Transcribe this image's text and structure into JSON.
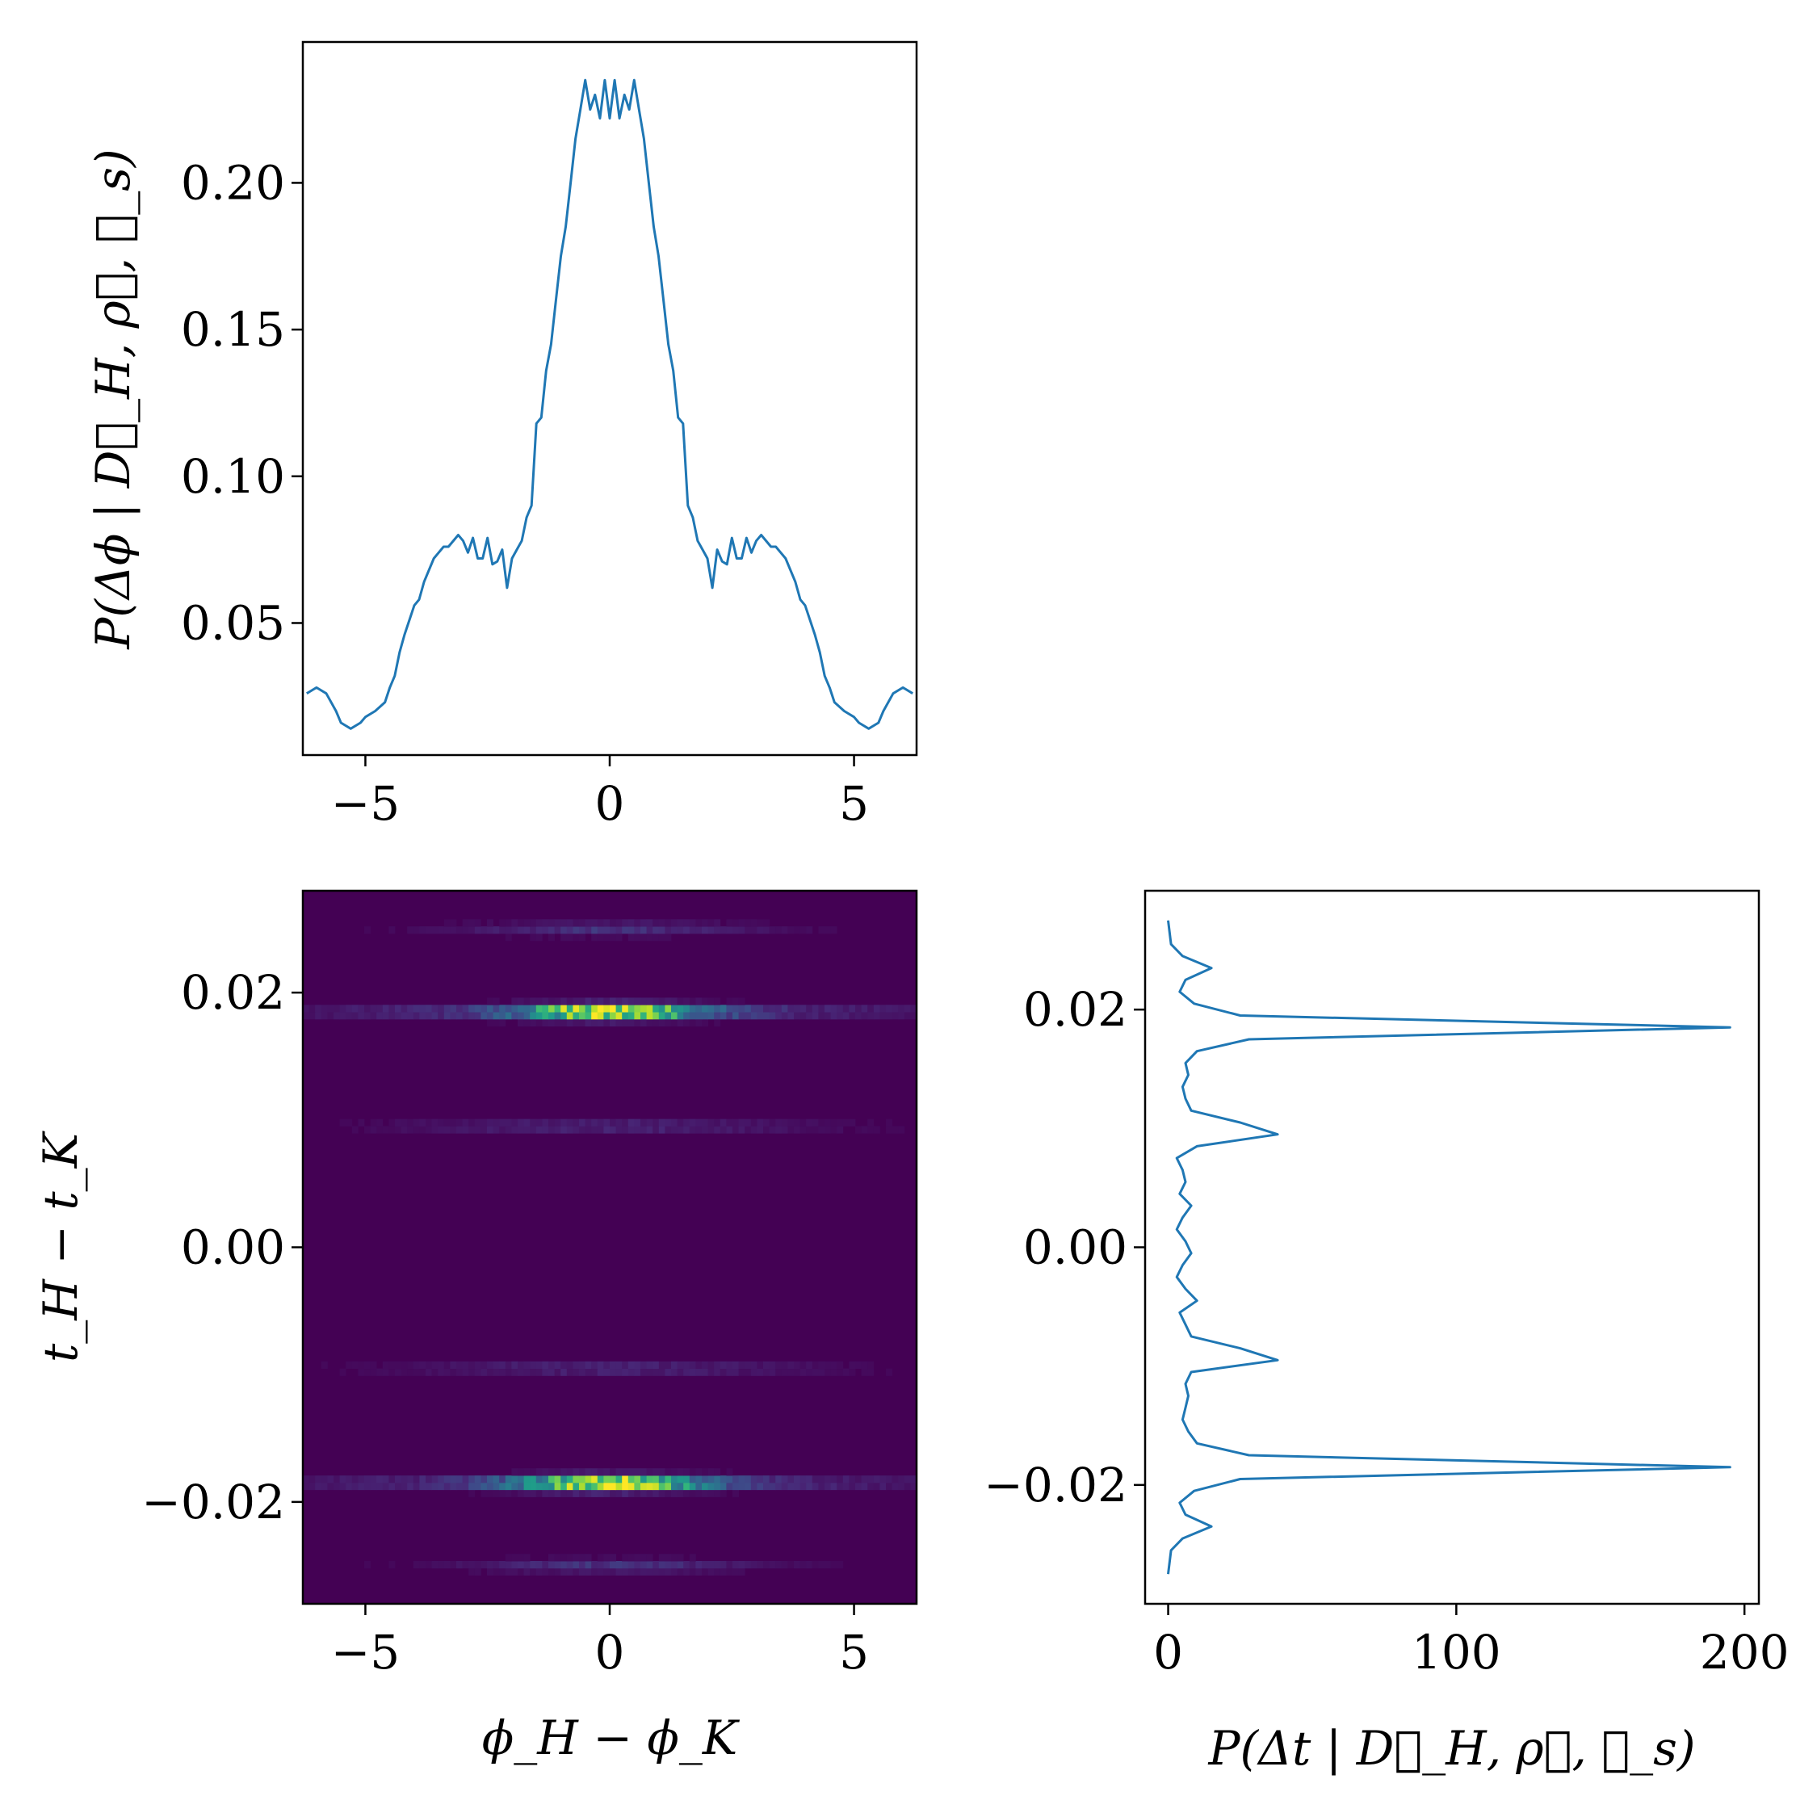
{
  "chart_data": [
    {
      "id": "phase-marginal",
      "type": "line",
      "xlim": [
        -6.28,
        6.28
      ],
      "ylim": [
        0.005,
        0.248
      ],
      "xticks": [
        -5,
        0,
        5
      ],
      "xtick_labels": [
        "−5",
        "0",
        "5"
      ],
      "yticks": [
        0.05,
        0.1,
        0.15,
        0.2
      ],
      "ytick_labels": [
        "0.05",
        "0.10",
        "0.15",
        "0.20"
      ],
      "xlabel": "",
      "ylabel": "P(Δϕ | D⃗_H, ρ⃗, ℋ_s)",
      "color": "#1f77b4",
      "x": [
        -6.2,
        -6.0,
        -5.8,
        -5.6,
        -5.5,
        -5.3,
        -5.1,
        -5.0,
        -4.8,
        -4.6,
        -4.5,
        -4.4,
        -4.3,
        -4.2,
        -4.0,
        -3.9,
        -3.8,
        -3.6,
        -3.5,
        -3.4,
        -3.3,
        -3.1,
        -3.0,
        -2.9,
        -2.8,
        -2.7,
        -2.6,
        -2.5,
        -2.4,
        -2.3,
        -2.2,
        -2.1,
        -2.0,
        -1.9,
        -1.8,
        -1.7,
        -1.6,
        -1.5,
        -1.4,
        -1.3,
        -1.2,
        -1.1,
        -1.0,
        -0.9,
        -0.8,
        -0.7,
        -0.6,
        -0.5,
        -0.4,
        -0.3,
        -0.2,
        -0.1,
        0.0,
        0.1,
        0.2,
        0.3,
        0.4,
        0.5,
        0.6,
        0.7,
        0.8,
        0.9,
        1.0,
        1.1,
        1.2,
        1.3,
        1.4,
        1.5,
        1.6,
        1.7,
        1.8,
        1.9,
        2.0,
        2.1,
        2.2,
        2.3,
        2.4,
        2.5,
        2.6,
        2.7,
        2.8,
        2.9,
        3.0,
        3.1,
        3.3,
        3.4,
        3.5,
        3.6,
        3.8,
        3.9,
        4.0,
        4.2,
        4.3,
        4.4,
        4.5,
        4.6,
        4.8,
        5.0,
        5.1,
        5.3,
        5.5,
        5.6,
        5.8,
        6.0,
        6.2
      ],
      "y": [
        0.026,
        0.028,
        0.026,
        0.02,
        0.016,
        0.014,
        0.016,
        0.018,
        0.02,
        0.023,
        0.028,
        0.032,
        0.04,
        0.046,
        0.056,
        0.058,
        0.064,
        0.072,
        0.074,
        0.076,
        0.076,
        0.08,
        0.078,
        0.074,
        0.079,
        0.072,
        0.072,
        0.079,
        0.07,
        0.071,
        0.075,
        0.062,
        0.072,
        0.075,
        0.078,
        0.086,
        0.09,
        0.118,
        0.12,
        0.136,
        0.145,
        0.16,
        0.175,
        0.185,
        0.2,
        0.215,
        0.225,
        0.235,
        0.225,
        0.23,
        0.222,
        0.235,
        0.222,
        0.235,
        0.222,
        0.23,
        0.225,
        0.235,
        0.225,
        0.215,
        0.2,
        0.185,
        0.175,
        0.16,
        0.145,
        0.136,
        0.12,
        0.118,
        0.09,
        0.086,
        0.078,
        0.075,
        0.072,
        0.062,
        0.075,
        0.071,
        0.07,
        0.079,
        0.072,
        0.072,
        0.079,
        0.074,
        0.078,
        0.08,
        0.076,
        0.076,
        0.074,
        0.072,
        0.064,
        0.058,
        0.056,
        0.046,
        0.04,
        0.032,
        0.028,
        0.023,
        0.02,
        0.018,
        0.016,
        0.014,
        0.016,
        0.02,
        0.026,
        0.028,
        0.026
      ]
    },
    {
      "id": "joint-histogram",
      "type": "heatmap",
      "colormap": "viridis",
      "xlim": [
        -6.28,
        6.28
      ],
      "ylim": [
        -0.028,
        0.028
      ],
      "xticks": [
        -5,
        0,
        5
      ],
      "xtick_labels": [
        "−5",
        "0",
        "5"
      ],
      "yticks": [
        -0.02,
        0.0,
        0.02
      ],
      "ytick_labels": [
        "−0.02",
        "0.00",
        "0.02"
      ],
      "xlabel": "ϕ_H − ϕ_K",
      "ylabel": "t_H − t_K",
      "x_bins": 100,
      "y_bins": 100,
      "background_color": "#440154",
      "hot_bands": [
        {
          "t": 0.0185,
          "dphi_center": 0.0,
          "dphi_width": 1.8,
          "peak": 1.0,
          "halo_width": 6.5,
          "halo_level": 0.18
        },
        {
          "t": -0.0185,
          "dphi_center": 0.0,
          "dphi_width": 1.8,
          "peak": 1.0,
          "halo_width": 6.5,
          "halo_level": 0.18
        },
        {
          "t": 0.025,
          "dphi_center": 0.0,
          "dphi_width": 2.5,
          "peak": 0.1,
          "halo_width": 5.0,
          "halo_level": 0.04
        },
        {
          "t": -0.025,
          "dphi_center": 0.0,
          "dphi_width": 2.5,
          "peak": 0.1,
          "halo_width": 5.0,
          "halo_level": 0.04
        },
        {
          "t": 0.0095,
          "dphi_center": 0.0,
          "dphi_width": 4.0,
          "peak": 0.08,
          "halo_width": 6.0,
          "halo_level": 0.03
        },
        {
          "t": -0.0095,
          "dphi_center": 0.0,
          "dphi_width": 4.0,
          "peak": 0.08,
          "halo_width": 6.0,
          "halo_level": 0.03
        }
      ]
    },
    {
      "id": "time-marginal",
      "type": "line",
      "orientation": "horizontal",
      "xlim": [
        -8,
        205
      ],
      "ylim": [
        -0.03,
        0.03
      ],
      "xticks": [
        0,
        100,
        200
      ],
      "xtick_labels": [
        "0",
        "100",
        "200"
      ],
      "yticks": [
        -0.02,
        0.0,
        0.02
      ],
      "ytick_labels": [
        "−0.02",
        "0.00",
        "0.02"
      ],
      "xlabel": "P(Δt | D⃗_H, ρ⃗, ℋ_s)",
      "ylabel": "",
      "color": "#1f77b4",
      "t": [
        -0.0275,
        -0.0255,
        -0.0245,
        -0.0235,
        -0.0225,
        -0.0215,
        -0.0205,
        -0.0195,
        -0.0185,
        -0.0175,
        -0.0165,
        -0.0155,
        -0.0145,
        -0.0135,
        -0.0125,
        -0.0115,
        -0.0105,
        -0.0095,
        -0.0085,
        -0.0075,
        -0.0065,
        -0.0055,
        -0.0045,
        -0.0035,
        -0.0025,
        -0.0015,
        -0.0005,
        0.0005,
        0.0015,
        0.0025,
        0.0035,
        0.0045,
        0.0055,
        0.0065,
        0.0075,
        0.0085,
        0.0095,
        0.0105,
        0.0115,
        0.0125,
        0.0135,
        0.0145,
        0.0155,
        0.0165,
        0.0175,
        0.0185,
        0.0195,
        0.0205,
        0.0215,
        0.0225,
        0.0235,
        0.0245,
        0.0255,
        0.0275
      ],
      "p": [
        0,
        1,
        5,
        15,
        6,
        4,
        9,
        25,
        195,
        28,
        10,
        7,
        5,
        6,
        7,
        6,
        8,
        38,
        25,
        8,
        6,
        4,
        10,
        6,
        3,
        5,
        8,
        6,
        3,
        5,
        8,
        4,
        6,
        5,
        3,
        10,
        38,
        25,
        8,
        6,
        5,
        7,
        6,
        10,
        28,
        195,
        25,
        9,
        4,
        6,
        15,
        5,
        1,
        0
      ]
    }
  ]
}
